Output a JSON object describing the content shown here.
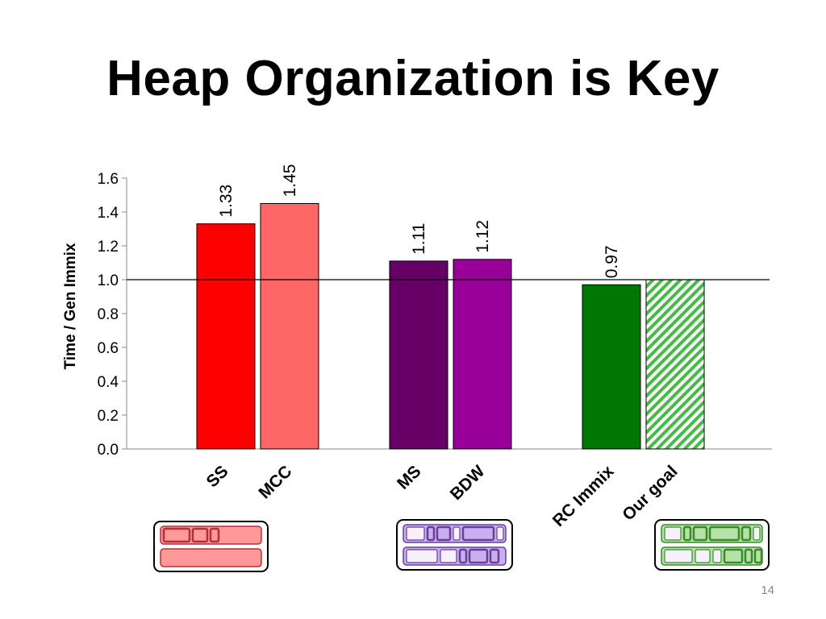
{
  "slide": {
    "title": "Heap Organization is Key",
    "number": "14"
  },
  "chart_data": {
    "type": "bar",
    "ylabel": "Time / Gen Immix",
    "ylim": [
      0,
      1.6
    ],
    "yticks": [
      "0.0",
      "0.2",
      "0.4",
      "0.6",
      "0.8",
      "1.0",
      "1.2",
      "1.4",
      "1.6"
    ],
    "reference_line": 1.0,
    "grid": false,
    "legend": "none",
    "categories": [
      "SS",
      "MCC",
      "MS",
      "BDW",
      "RC Immix",
      "Our goal"
    ],
    "values": [
      1.33,
      1.45,
      1.11,
      1.12,
      0.97,
      1.0
    ],
    "value_labels": [
      "1.33",
      "1.45",
      "1.11",
      "1.12",
      "0.97",
      ""
    ],
    "colors": [
      "#ff0000",
      "#ff6666",
      "#660066",
      "#990099",
      "#007700",
      "#44bb44"
    ],
    "patterns": [
      "solid",
      "solid",
      "solid",
      "solid",
      "solid",
      "hatched"
    ],
    "groups": [
      {
        "members": [
          "SS",
          "MCC"
        ],
        "icon": "red-heap-diagram-icon",
        "color": "#b0303a",
        "fill": "#ff9999"
      },
      {
        "members": [
          "MS",
          "BDW"
        ],
        "icon": "purple-heap-diagram-icon",
        "color": "#6a3d9a",
        "fill": "#c8b0ee"
      },
      {
        "members": [
          "RC Immix",
          "Our goal"
        ],
        "icon": "green-heap-diagram-icon",
        "color": "#3a8a2a",
        "fill": "#b4e2a8"
      }
    ]
  }
}
